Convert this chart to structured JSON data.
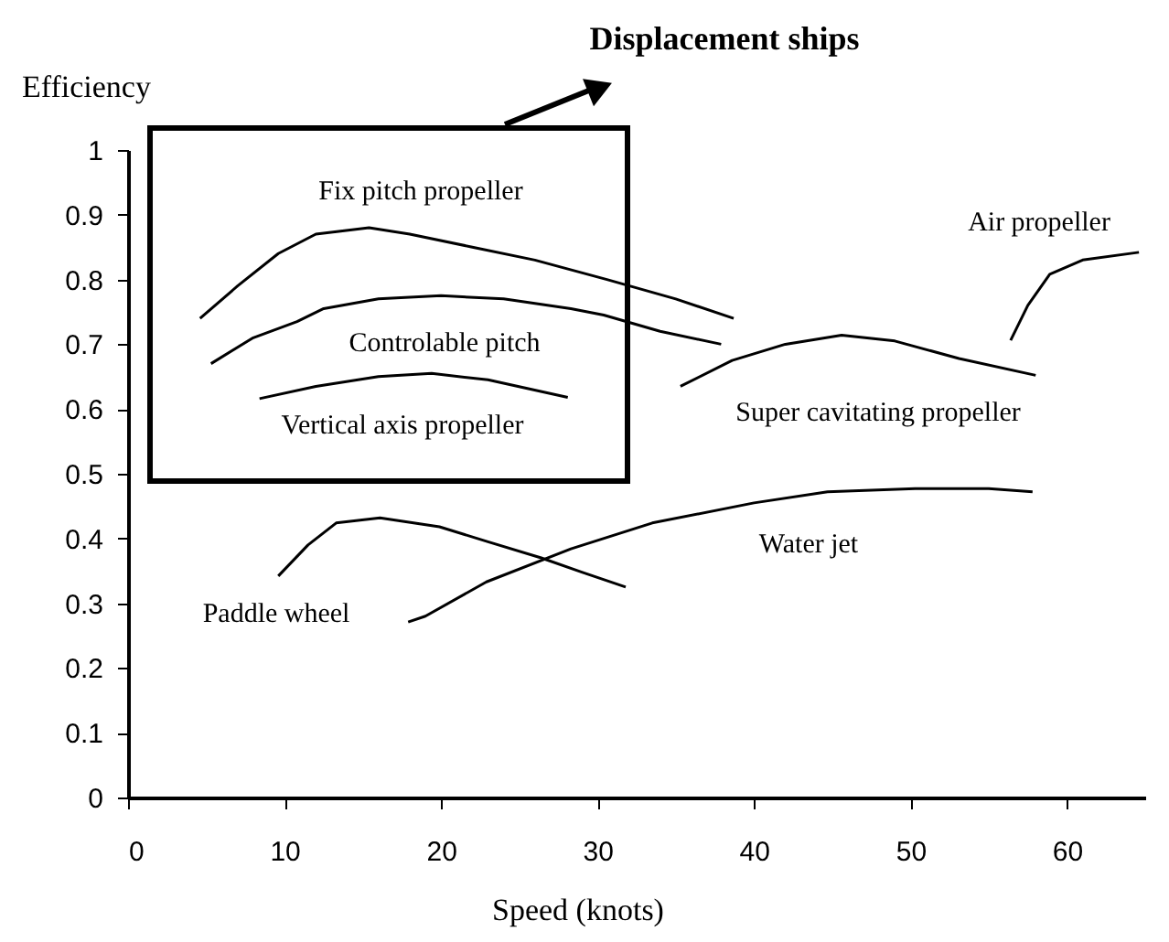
{
  "chart_data": {
    "type": "line",
    "xlabel": "Speed (knots)",
    "ylabel": "Efficiency",
    "xlim": [
      0,
      65
    ],
    "xticks": [
      0,
      10,
      20,
      30,
      40,
      50,
      60
    ],
    "ylim": [
      0,
      1
    ],
    "yticks": [
      0,
      0.1,
      0.2,
      0.3,
      0.4,
      0.5,
      0.6,
      0.7,
      0.8,
      0.9,
      1
    ],
    "grid": false,
    "legend": false,
    "marker": "none",
    "line_style": "solid",
    "series": [
      {
        "name": "Fix pitch propeller",
        "color": "#000000",
        "x": [
          4.6,
          7,
          9.6,
          12,
          15.4,
          18,
          22,
          26,
          30.6,
          35,
          38.7
        ],
        "values": [
          0.74,
          0.79,
          0.84,
          0.87,
          0.88,
          0.87,
          0.85,
          0.83,
          0.8,
          0.77,
          0.74
        ]
      },
      {
        "name": "Controlable pitch",
        "color": "#000000",
        "x": [
          5.3,
          8,
          10.8,
          12.5,
          16,
          20,
          24,
          28.3,
          30.4,
          34,
          37.9
        ],
        "values": [
          0.67,
          0.71,
          0.735,
          0.755,
          0.77,
          0.775,
          0.77,
          0.755,
          0.745,
          0.72,
          0.7
        ]
      },
      {
        "name": "Vertical axis propeller",
        "color": "#000000",
        "x": [
          8.4,
          12,
          16,
          19.4,
          23,
          28.1
        ],
        "values": [
          0.616,
          0.635,
          0.65,
          0.655,
          0.645,
          0.618
        ]
      },
      {
        "name": "Super cavitating propeller",
        "color": "#000000",
        "x": [
          35.3,
          38.6,
          42,
          45.6,
          49,
          53.1,
          58
        ],
        "values": [
          0.635,
          0.675,
          0.7,
          0.714,
          0.705,
          0.678,
          0.652
        ]
      },
      {
        "name": "Air propeller",
        "color": "#000000",
        "x": [
          56.4,
          57.5,
          58.9,
          61,
          64.6
        ],
        "values": [
          0.706,
          0.76,
          0.808,
          0.83,
          0.842
        ]
      },
      {
        "name": "Paddle wheel",
        "color": "#000000",
        "x": [
          9.6,
          11.5,
          13.3,
          16.1,
          19.9,
          23,
          26.4,
          29,
          31.8
        ],
        "values": [
          0.342,
          0.39,
          0.424,
          0.432,
          0.418,
          0.395,
          0.37,
          0.348,
          0.325
        ]
      },
      {
        "name": "Water jet",
        "color": "#000000",
        "x": [
          17.9,
          19,
          22.9,
          28.3,
          33.5,
          40,
          44.7,
          50.3,
          55,
          57.8
        ],
        "values": [
          0.271,
          0.28,
          0.333,
          0.384,
          0.424,
          0.455,
          0.472,
          0.477,
          0.477,
          0.472
        ]
      }
    ],
    "annotations": [
      "Displacement ships"
    ]
  }
}
